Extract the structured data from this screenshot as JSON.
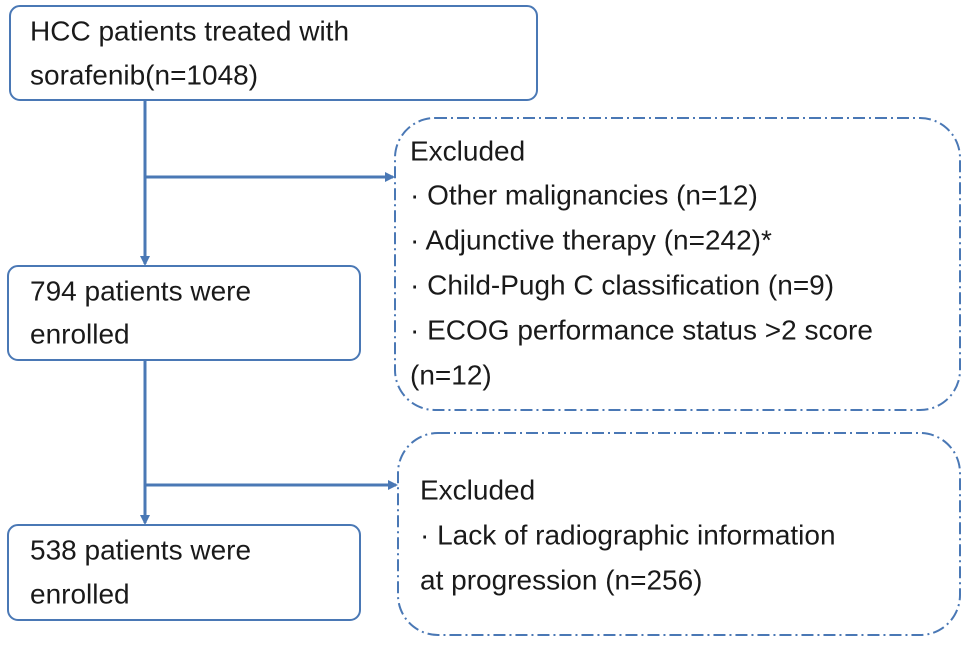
{
  "nodes": [
    {
      "lines": [
        "HCC patients treated with",
        "sorafenib(n=1048)"
      ]
    },
    {
      "lines": [
        "794 patients were",
        "enrolled"
      ]
    },
    {
      "lines": [
        "538 patients were",
        "enrolled"
      ]
    }
  ],
  "exclusions": [
    {
      "lines": [
        "Excluded",
        "· Other malignancies (n=12)",
        "· Adjunctive therapy (n=242)*",
        "· Child-Pugh C classification (n=9)",
        "· ECOG performance status >2 score",
        "(n=12)"
      ]
    },
    {
      "lines": [
        "Excluded",
        "· Lack of radiographic information",
        "at progression (n=256)"
      ]
    }
  ]
}
